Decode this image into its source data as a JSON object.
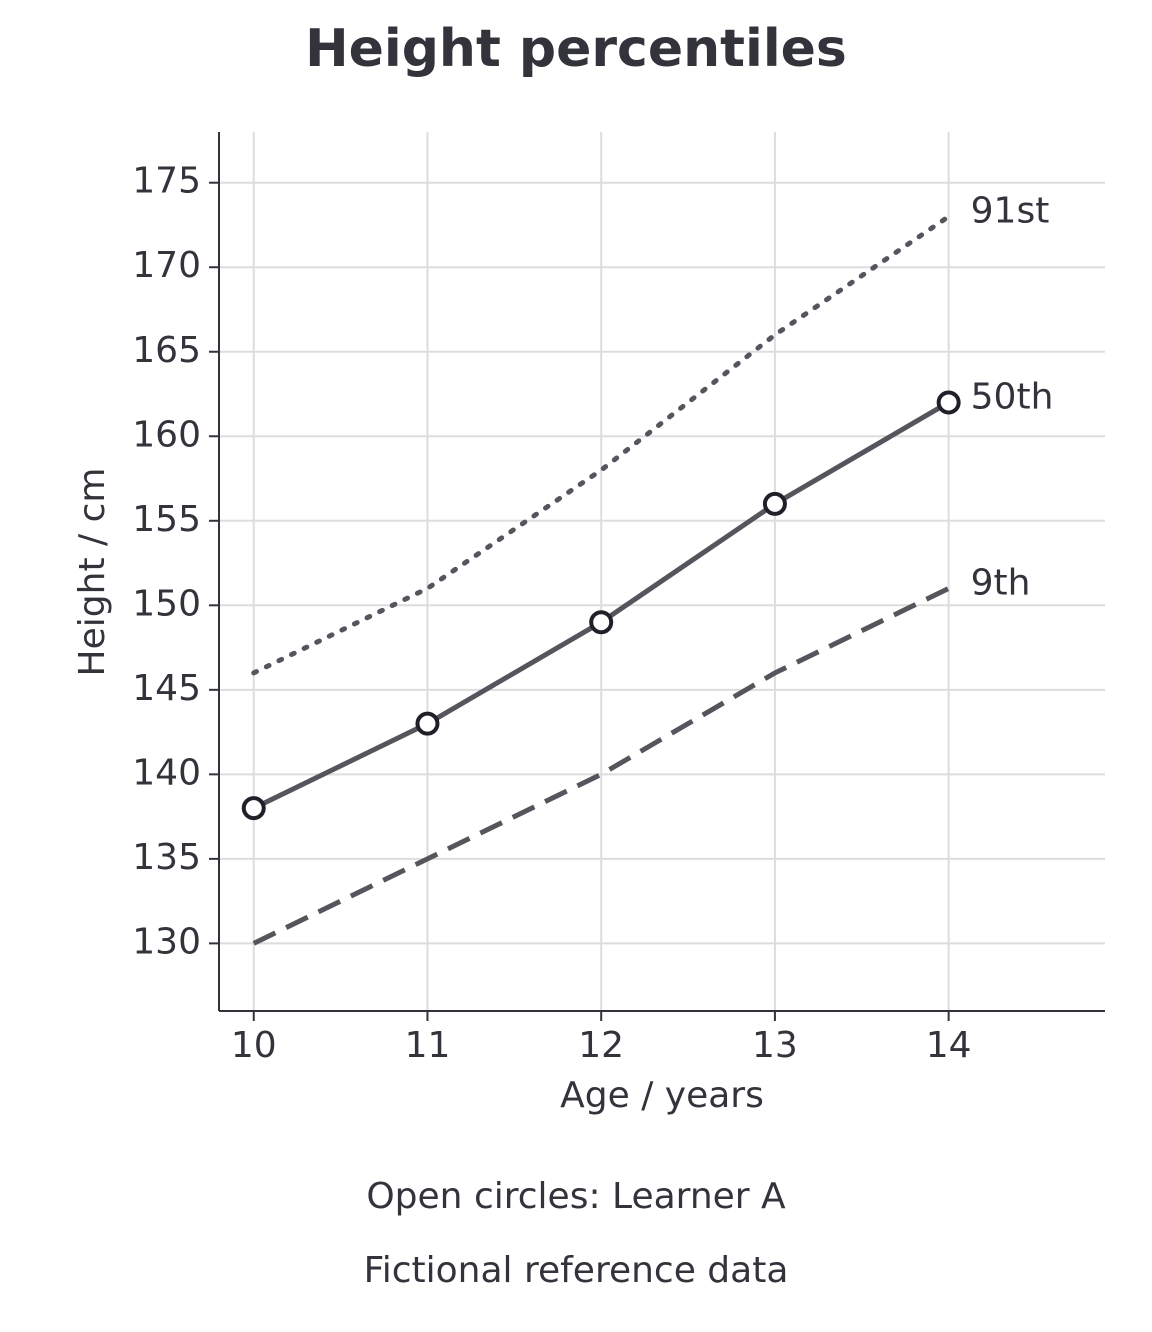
{
  "chart_data": {
    "type": "line",
    "title": "Height percentiles",
    "x_label": "Age / years",
    "y_label": "Height / cm",
    "notes": [
      "Open circles: Learner A",
      "Fictional reference data"
    ],
    "x": [
      10,
      11,
      12,
      13,
      14
    ],
    "series": [
      {
        "name": "91st",
        "color": "#55565d",
        "style": "dotted",
        "values": [
          146,
          151,
          158,
          166,
          173
        ]
      },
      {
        "name": "50th",
        "color": "#55565d",
        "style": "solid",
        "marker": "open-circle",
        "values": [
          138,
          143,
          149,
          156,
          162
        ]
      },
      {
        "name": "9th",
        "color": "#55565d",
        "style": "dashed",
        "values": [
          130,
          135,
          140,
          146,
          151
        ]
      }
    ],
    "xlim": [
      9.8,
      14.9
    ],
    "xticks": [
      10,
      11,
      12,
      13,
      14
    ],
    "ylim": [
      126,
      178
    ],
    "yticks": [
      130,
      135,
      140,
      145,
      150,
      155,
      160,
      165,
      170,
      175
    ],
    "grid": true
  }
}
